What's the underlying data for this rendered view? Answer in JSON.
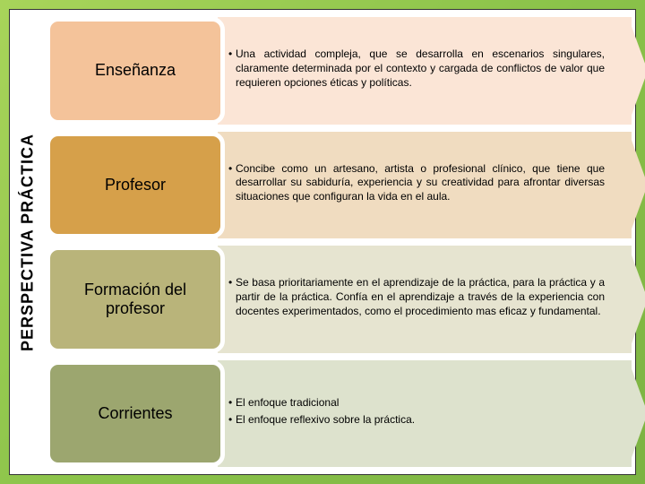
{
  "slide": {
    "background_gradient": [
      "#a8d45a",
      "#8bc34a",
      "#7cb342"
    ],
    "frame_bg": "#ffffff",
    "frame_border": "#333333"
  },
  "vertical_title": {
    "text": "PERSPECTIVA PRÁCTICA",
    "fontsize": 18,
    "color": "#000000"
  },
  "rows": [
    {
      "label": "Enseñanza",
      "label_bg": "#f4c39a",
      "arrow_bg": "#fbe5d6",
      "arrow_tip": "#fbe5d6",
      "bullets": [
        "Una actividad compleja, que se desarrolla en escenarios singulares, claramente determinada por el contexto y cargada de conflictos de valor que requieren opciones éticas y políticas."
      ]
    },
    {
      "label": "Profesor",
      "label_bg": "#d6a04a",
      "arrow_bg": "#f0dcc0",
      "arrow_tip": "#f0dcc0",
      "bullets": [
        "Concibe como un artesano, artista o profesional clínico, que tiene que desarrollar su sabiduría, experiencia y su creatividad para afrontar diversas situaciones que configuran la vida en el aula."
      ]
    },
    {
      "label": "Formación del profesor",
      "label_bg": "#b9b47a",
      "arrow_bg": "#e6e4d0",
      "arrow_tip": "#e6e4d0",
      "bullets": [
        "Se basa prioritariamente en el aprendizaje de la práctica, para la práctica y a partir de la práctica. Confía en el aprendizaje a través de la experiencia con docentes experimentados, como el procedimiento mas eficaz y fundamental."
      ]
    },
    {
      "label": "Corrientes",
      "label_bg": "#9ca66f",
      "arrow_bg": "#dde2cd",
      "arrow_tip": "#dde2cd",
      "bullets": [
        "El enfoque tradicional",
        "El enfoque reflexivo sobre la práctica."
      ]
    }
  ],
  "typography": {
    "label_fontsize": 18,
    "desc_fontsize": 12,
    "font_family": "Arial"
  }
}
